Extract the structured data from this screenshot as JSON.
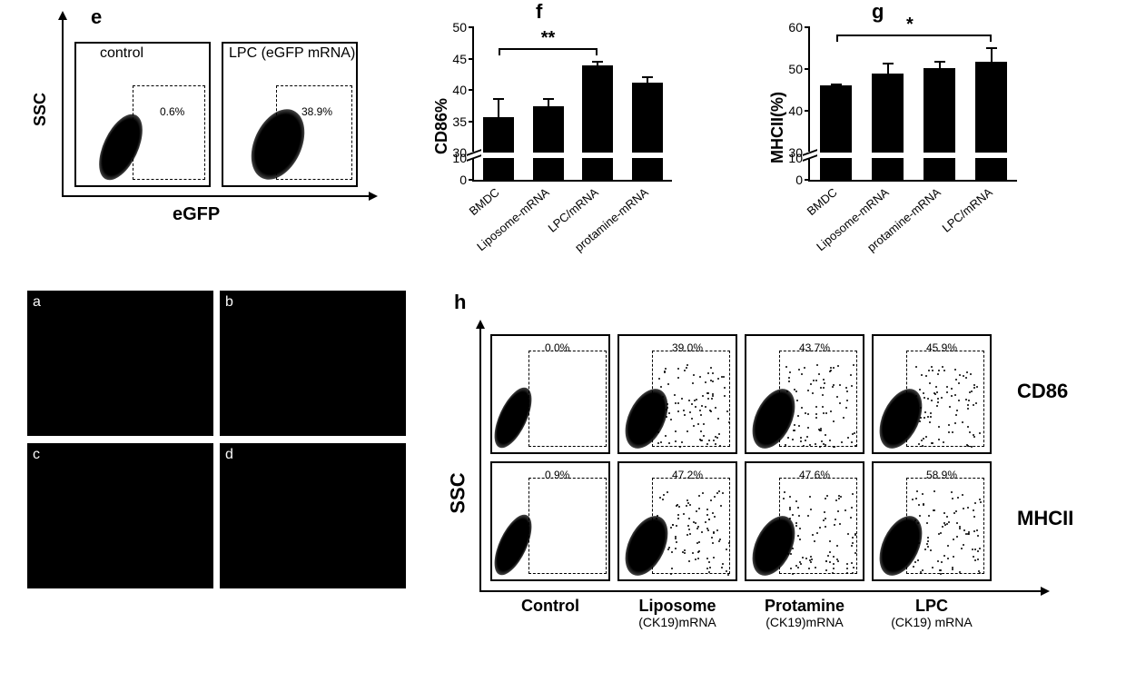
{
  "colors": {
    "bar": "#000000",
    "axis": "#000000",
    "bg": "#ffffff",
    "micro_bg": "#000000",
    "micro_letter": "#fafafa"
  },
  "fonts": {
    "panel_letter": 22,
    "axis_title": 18,
    "tick": 14,
    "xlab_rot": 13
  },
  "panel_e": {
    "letter": "e",
    "ylabel": "SSC",
    "xlabel": "eGFP",
    "plots": [
      {
        "title": "control",
        "gate_pct": "0.6%"
      },
      {
        "title": "LPC (eGFP mRNA)",
        "gate_pct": "38.9%"
      }
    ]
  },
  "panel_f": {
    "letter": "f",
    "ylabel": "CD86%",
    "type": "bar",
    "ylim": [
      0,
      50
    ],
    "yticks_upper": [
      30,
      35,
      40,
      45,
      50
    ],
    "yticks_lower": [
      0,
      10
    ],
    "axis_break_at": 10,
    "upper_starts_at": 30,
    "categories": [
      "BMDC",
      "Liposome-mRNA",
      "LPC/mRNA",
      "protamine-mRNA"
    ],
    "values": [
      35.7,
      37.4,
      43.9,
      41.2
    ],
    "errors": [
      3.0,
      1.3,
      0.8,
      1.0
    ],
    "bar_color": "#000000",
    "sig": {
      "from": 0,
      "to": 2,
      "label": "**"
    }
  },
  "panel_g": {
    "letter": "g",
    "ylabel": "MHCII(%)",
    "type": "bar",
    "ylim": [
      0,
      60
    ],
    "yticks_upper": [
      30,
      40,
      50,
      60
    ],
    "yticks_lower": [
      0,
      10
    ],
    "axis_break_at": 10,
    "upper_starts_at": 30,
    "categories": [
      "BMDC",
      "Liposome-mRNA",
      "protamine-mRNA",
      "LPC/mRNA"
    ],
    "values": [
      46.1,
      49.0,
      50.2,
      51.8
    ],
    "errors": [
      0.5,
      2.5,
      1.8,
      3.4
    ],
    "bar_color": "#000000",
    "sig": {
      "from": 0,
      "to": 3,
      "label": "*"
    }
  },
  "micrographs": {
    "letters": [
      "a",
      "b",
      "c",
      "d"
    ],
    "background_color": "#000000"
  },
  "panel_h": {
    "letter": "h",
    "ylabel": "SSC",
    "row_labels": [
      "CD86",
      "MHCII"
    ],
    "col_labels": [
      {
        "main": "Control",
        "sub": ""
      },
      {
        "main": "Liposome",
        "sub": "(CK19)mRNA"
      },
      {
        "main": "Protamine",
        "sub": "(CK19)mRNA"
      },
      {
        "main": "LPC",
        "sub": "(CK19) mRNA"
      }
    ],
    "gate_pct": [
      [
        "0.0%",
        "39.0%",
        "43.7%",
        "45.9%"
      ],
      [
        "0.9%",
        "47.2%",
        "47.6%",
        "58.9%"
      ]
    ]
  }
}
